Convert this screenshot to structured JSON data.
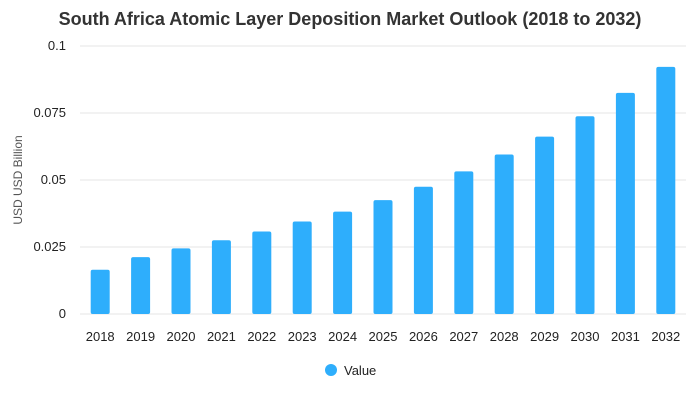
{
  "chart_data": {
    "type": "bar",
    "title": "South Africa Atomic Layer Deposition Market Outlook (2018 to 2032)",
    "xlabel": "",
    "ylabel": "USD USD Billion",
    "categories": [
      "2018",
      "2019",
      "2020",
      "2021",
      "2022",
      "2023",
      "2024",
      "2025",
      "2026",
      "2027",
      "2028",
      "2029",
      "2030",
      "2031",
      "2032"
    ],
    "series": [
      {
        "name": "Value",
        "color": "#2eaefc",
        "values": [
          0.0165,
          0.0212,
          0.0245,
          0.0275,
          0.0308,
          0.0345,
          0.0382,
          0.0425,
          0.0475,
          0.0532,
          0.0595,
          0.0662,
          0.0738,
          0.0825,
          0.0922
        ]
      }
    ],
    "ylim": [
      0,
      0.1
    ],
    "y_ticks": [
      {
        "value": 0,
        "label": "0"
      },
      {
        "value": 0.025,
        "label": "0.025"
      },
      {
        "value": 0.05,
        "label": "0.05"
      },
      {
        "value": 0.075,
        "label": "0.075"
      },
      {
        "value": 0.1,
        "label": "0.1"
      }
    ],
    "grid": true,
    "legend": {
      "position": "bottom-center",
      "entries": [
        "Value"
      ]
    }
  }
}
